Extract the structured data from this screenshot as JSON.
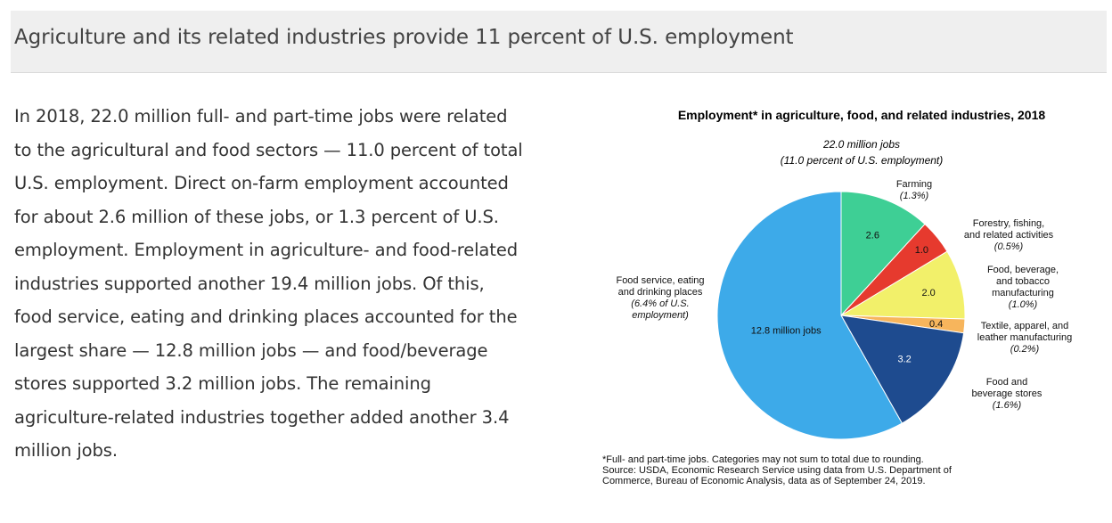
{
  "header": {
    "title": "Agriculture and its related industries provide 11 percent of U.S. employment"
  },
  "body": {
    "lines": [
      "In 2018, 22.0 million full- and part-time jobs were related",
      "to the agricultural and food sectors — 11.0 percent of total",
      "U.S. employment. Direct on-farm employment accounted",
      "for about 2.6 million of these jobs, or 1.3 percent of U.S.",
      "employment. Employment in agriculture- and food-related",
      "industries supported another 19.4 million jobs. Of this,",
      "food service, eating and drinking places accounted for the",
      "largest share — 12.8 million jobs — and food/beverage",
      "stores supported 3.2 million jobs. The remaining",
      "agriculture-related industries together added another 3.4",
      "million jobs."
    ]
  },
  "chart_data": {
    "type": "pie",
    "title": "Employment* in agriculture, food, and related industries, 2018",
    "subtitle": [
      "22.0 million jobs",
      "(11.0 percent of U.S. employment)"
    ],
    "unit": "million jobs",
    "slices": [
      {
        "label": [
          "Farming"
        ],
        "share": [
          "(1.3%)"
        ],
        "value": 2.6,
        "value_label": "2.6",
        "color": "#3ecf95"
      },
      {
        "label": [
          "Forestry, fishing,",
          "and related activities"
        ],
        "share": [
          "(0.5%)"
        ],
        "value": 1.0,
        "value_label": "1.0",
        "color": "#e63a2e"
      },
      {
        "label": [
          "Food, beverage,",
          "and tobacco",
          "manufacturing"
        ],
        "share": [
          "(1.0%)"
        ],
        "value": 2.0,
        "value_label": "2.0",
        "color": "#f2f06a"
      },
      {
        "label": [
          "Textile, apparel, and",
          "leather manufacturing"
        ],
        "share": [
          "(0.2%)"
        ],
        "value": 0.4,
        "value_label": "0.4",
        "color": "#f7b55c"
      },
      {
        "label": [
          "Food and",
          "beverage stores"
        ],
        "share": [
          "(1.6%)"
        ],
        "value": 3.2,
        "value_label": "3.2",
        "color": "#1e4b8f"
      },
      {
        "label": [
          "Food service, eating",
          "and drinking places"
        ],
        "share": [
          "(6.4% of U.S.",
          "employment)"
        ],
        "value": 12.8,
        "value_label": "12.8 million jobs",
        "color": "#3daae9"
      }
    ],
    "notes": [
      "*Full- and part-time jobs. Categories may not sum to total due to rounding.",
      "Source: USDA, Economic Research Service using data from U.S. Department of",
      "Commerce, Bureau of Economic Analysis, data as of September 24, 2019."
    ]
  }
}
